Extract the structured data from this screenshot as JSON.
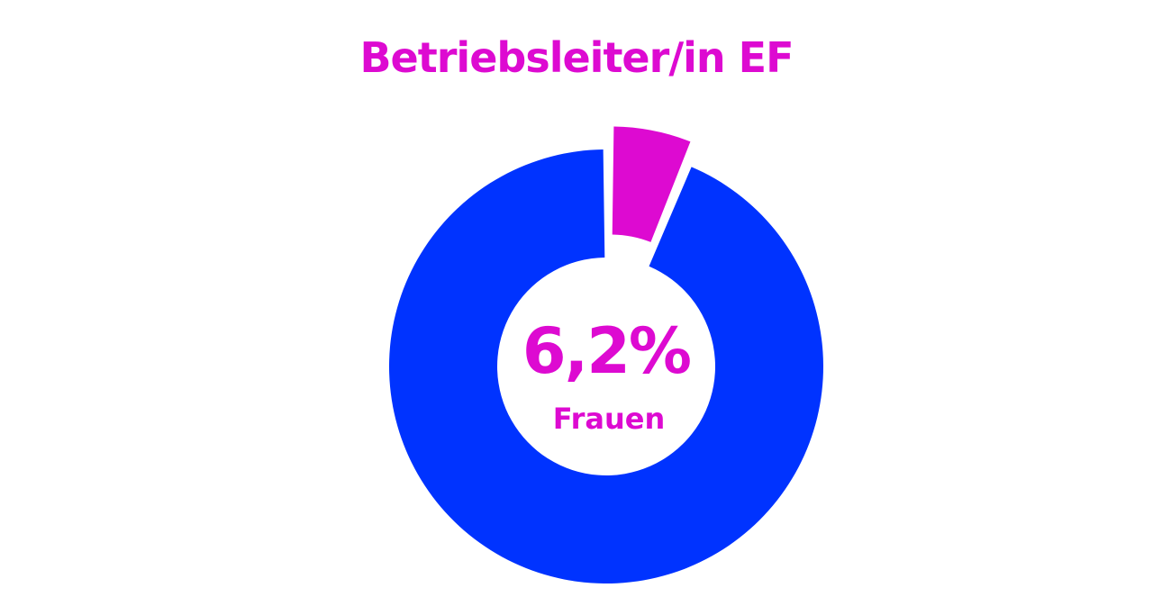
{
  "chart_data": {
    "type": "pie",
    "title": "Betriebsleiter/in EF",
    "slices": [
      {
        "label": "Frauen",
        "value": 6.2,
        "color": "#dd0ad1",
        "exploded": true
      },
      {
        "value": 93.8,
        "color": "#0033ff",
        "exploded": false
      }
    ],
    "center_value": "6,2%",
    "center_label": "Frauen",
    "donut": true
  },
  "colors": {
    "accent": "#dd0ad1",
    "primary": "#0033ff",
    "background": "#ffffff"
  }
}
